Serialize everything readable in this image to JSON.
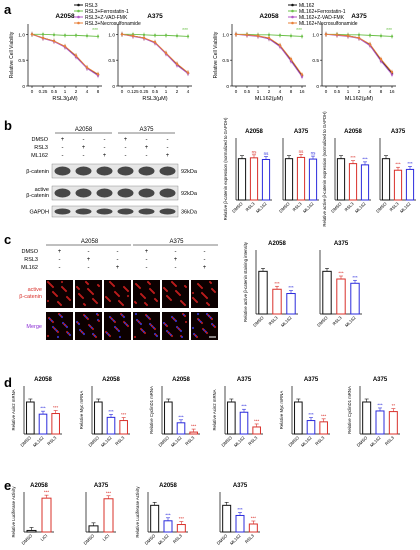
{
  "panels": {
    "a": "a",
    "b": "b",
    "c": "c",
    "d": "d",
    "e": "e"
  },
  "colors": {
    "black": "#111111",
    "red": "#d9302a",
    "blue": "#2b2bdc",
    "green": "#6cc04a",
    "purple": "#b056c6",
    "orange": "#e8803a",
    "lightgray": "#bdbdbd"
  },
  "chart_data": [
    {
      "type": "line",
      "panel": "a",
      "group": "RSL3",
      "title": "A2058",
      "ylabel": "Relative Cell Viability",
      "xlabel": "RSL3(μM)",
      "x_ticks": [
        "0",
        "0.25",
        "0.5",
        "1",
        "2",
        "4",
        "8"
      ],
      "x": [
        0,
        0.25,
        0.5,
        1,
        2,
        4,
        8
      ],
      "ylim": [
        0,
        1.2
      ],
      "y_ticks": [
        "0",
        "0.5",
        "1.0"
      ],
      "series": [
        {
          "name": "RSL3",
          "values": [
            1.0,
            0.93,
            0.87,
            0.76,
            0.58,
            0.35,
            0.22
          ]
        },
        {
          "name": "RSL3+Ferrostatin-1",
          "values": [
            1.0,
            1.0,
            0.99,
            0.98,
            0.98,
            0.97,
            0.96
          ]
        },
        {
          "name": "RSL3+Z-VAD-FMK",
          "values": [
            1.0,
            0.92,
            0.86,
            0.75,
            0.56,
            0.34,
            0.2
          ]
        },
        {
          "name": "RSL3+Necrosulfonamide",
          "values": [
            1.0,
            0.93,
            0.87,
            0.77,
            0.59,
            0.36,
            0.23
          ]
        }
      ],
      "significance": "***"
    },
    {
      "type": "line",
      "panel": "a",
      "group": "RSL3",
      "title": "A375",
      "ylabel": "",
      "xlabel": "RSL3(μM)",
      "x_ticks": [
        "0",
        "0.125",
        "0.25",
        "0.5",
        "1",
        "2",
        "4"
      ],
      "x": [
        0,
        0.125,
        0.25,
        0.5,
        1,
        2,
        4
      ],
      "ylim": [
        0,
        1.2
      ],
      "y_ticks": [
        "0",
        "0.5",
        "1.0"
      ],
      "series": [
        {
          "name": "RSL3",
          "values": [
            1.0,
            0.97,
            0.93,
            0.84,
            0.63,
            0.42,
            0.25
          ]
        },
        {
          "name": "RSL3+Ferrostatin-1",
          "values": [
            1.0,
            1.0,
            0.99,
            0.98,
            0.98,
            0.97,
            0.96
          ]
        },
        {
          "name": "RSL3+Z-VAD-FMK",
          "values": [
            1.0,
            0.96,
            0.92,
            0.83,
            0.62,
            0.4,
            0.24
          ]
        },
        {
          "name": "RSL3+Necrosulfonamide",
          "values": [
            1.0,
            0.97,
            0.93,
            0.85,
            0.64,
            0.43,
            0.26
          ]
        }
      ],
      "significance": "***"
    },
    {
      "type": "line",
      "panel": "a",
      "group": "ML162",
      "title": "A2058",
      "ylabel": "Relative Cell Viability",
      "xlabel": "ML162(μM)",
      "x_ticks": [
        "0",
        "0.5",
        "1",
        "2",
        "4",
        "8",
        "16"
      ],
      "x": [
        0,
        0.5,
        1,
        2,
        4,
        8,
        16
      ],
      "ylim": [
        0,
        1.2
      ],
      "y_ticks": [
        "0",
        "0.5",
        "1.0"
      ],
      "series": [
        {
          "name": "ML162",
          "values": [
            1.0,
            0.99,
            0.97,
            0.92,
            0.78,
            0.5,
            0.2
          ]
        },
        {
          "name": "ML162+Ferrostatin-1",
          "values": [
            1.0,
            1.0,
            0.99,
            0.99,
            0.98,
            0.97,
            0.96
          ]
        },
        {
          "name": "ML162+Z-VAD-FMK",
          "values": [
            1.0,
            0.98,
            0.96,
            0.91,
            0.76,
            0.48,
            0.18
          ]
        },
        {
          "name": "ML162+Necrosulfonamide",
          "values": [
            1.0,
            0.99,
            0.97,
            0.93,
            0.79,
            0.52,
            0.22
          ]
        }
      ],
      "significance": "***"
    },
    {
      "type": "line",
      "panel": "a",
      "group": "ML162",
      "title": "A375",
      "ylabel": "",
      "xlabel": "ML162(μM)",
      "x_ticks": [
        "0",
        "0.5",
        "1",
        "2",
        "4",
        "8",
        "16"
      ],
      "x": [
        0,
        0.5,
        1,
        2,
        4,
        8,
        16
      ],
      "ylim": [
        0,
        1.2
      ],
      "y_ticks": [
        "0",
        "0.5",
        "1.0"
      ],
      "series": [
        {
          "name": "ML162",
          "values": [
            1.0,
            0.99,
            0.97,
            0.93,
            0.8,
            0.5,
            0.25
          ]
        },
        {
          "name": "ML162+Ferrostatin-1",
          "values": [
            1.0,
            1.0,
            0.99,
            0.99,
            0.98,
            0.97,
            0.96
          ]
        },
        {
          "name": "ML162+Z-VAD-FMK",
          "values": [
            1.0,
            0.98,
            0.96,
            0.92,
            0.78,
            0.48,
            0.22
          ]
        },
        {
          "name": "ML162+Necrosulfonamide",
          "values": [
            1.0,
            0.99,
            0.97,
            0.93,
            0.81,
            0.52,
            0.27
          ]
        }
      ],
      "significance": "***"
    },
    {
      "type": "bar",
      "panel": "b",
      "title": "A2058",
      "ylabel": "Relative β-catenin expression (normalized to GAPDH)",
      "categories": [
        "DMSO",
        "RSL3",
        "ML162"
      ],
      "values": [
        1.0,
        1.02,
        0.98
      ],
      "colors": [
        "black",
        "red",
        "blue"
      ],
      "significance": [
        "",
        "ns",
        "ns"
      ],
      "ylim": [
        0,
        1.5
      ]
    },
    {
      "type": "bar",
      "panel": "b",
      "title": "A375",
      "ylabel": "",
      "categories": [
        "DMSO",
        "RSL3",
        "ML162"
      ],
      "values": [
        1.0,
        1.03,
        0.99
      ],
      "colors": [
        "black",
        "red",
        "blue"
      ],
      "significance": [
        "",
        "ns",
        "ns"
      ],
      "ylim": [
        0,
        1.5
      ]
    },
    {
      "type": "bar",
      "panel": "b",
      "title": "A2058",
      "ylabel": "Relative active β-catenin expression (normalized to GAPDH)",
      "categories": [
        "DMSO",
        "RSL3",
        "ML162"
      ],
      "values": [
        1.0,
        0.88,
        0.85
      ],
      "colors": [
        "black",
        "red",
        "blue"
      ],
      "significance": [
        "",
        "***",
        "***"
      ],
      "ylim": [
        0,
        1.5
      ]
    },
    {
      "type": "bar",
      "panel": "b",
      "title": "A375",
      "ylabel": "",
      "categories": [
        "DMSO",
        "RSL3",
        "ML162"
      ],
      "values": [
        1.0,
        0.72,
        0.74
      ],
      "colors": [
        "black",
        "red",
        "blue"
      ],
      "significance": [
        "",
        "***",
        "***"
      ],
      "ylim": [
        0,
        1.5
      ]
    },
    {
      "type": "bar",
      "panel": "c",
      "title": "A2058",
      "ylabel": "Relative active β-catenin staining intensity",
      "categories": [
        "DMSO",
        "RSL3",
        "ML162"
      ],
      "values": [
        1.0,
        0.58,
        0.48
      ],
      "colors": [
        "black",
        "red",
        "blue"
      ],
      "significance": [
        "",
        "***",
        "***"
      ],
      "ylim": [
        0,
        1.5
      ]
    },
    {
      "type": "bar",
      "panel": "c",
      "title": "A375",
      "ylabel": "",
      "categories": [
        "DMSO",
        "RSL3",
        "ML162"
      ],
      "values": [
        1.0,
        0.82,
        0.72
      ],
      "colors": [
        "black",
        "red",
        "blue"
      ],
      "significance": [
        "",
        "***",
        "***"
      ],
      "ylim": [
        0,
        1.5
      ]
    },
    {
      "type": "bar",
      "panel": "d",
      "title": "A2058",
      "ylabel": "Relative Axin2 mRNA",
      "categories": [
        "DMSO",
        "ML162",
        "RSL3"
      ],
      "values": [
        1.0,
        0.62,
        0.64
      ],
      "colors": [
        "black",
        "blue",
        "red"
      ],
      "significance": [
        "",
        "***",
        "***"
      ],
      "ylim": [
        0,
        1.5
      ]
    },
    {
      "type": "bar",
      "panel": "d",
      "title": "A2058",
      "ylabel": "Relative Myc mRNA",
      "categories": [
        "DMSO",
        "ML162",
        "RSL3"
      ],
      "values": [
        1.0,
        0.52,
        0.42
      ],
      "colors": [
        "black",
        "blue",
        "red"
      ],
      "significance": [
        "",
        "***",
        "***"
      ],
      "ylim": [
        0,
        1.5
      ]
    },
    {
      "type": "bar",
      "panel": "d",
      "title": "A2058",
      "ylabel": "Relative CyclinD1 mRNA",
      "categories": [
        "DMSO",
        "ML162",
        "RSL3"
      ],
      "values": [
        1.0,
        0.35,
        0.06
      ],
      "colors": [
        "black",
        "blue",
        "red"
      ],
      "significance": [
        "",
        "***",
        "***"
      ],
      "ylim": [
        0,
        1.5
      ]
    },
    {
      "type": "bar",
      "panel": "d",
      "title": "A375",
      "ylabel": "Relative Axin2 mRNA",
      "categories": [
        "DMSO",
        "ML162",
        "RSL3"
      ],
      "values": [
        1.0,
        0.68,
        0.22
      ],
      "colors": [
        "black",
        "blue",
        "red"
      ],
      "significance": [
        "",
        "***",
        "***"
      ],
      "ylim": [
        0,
        1.5
      ]
    },
    {
      "type": "bar",
      "panel": "d",
      "title": "A375",
      "ylabel": "Relative Myc mRNA",
      "categories": [
        "DMSO",
        "ML162",
        "RSL3"
      ],
      "values": [
        1.0,
        0.42,
        0.38
      ],
      "colors": [
        "black",
        "blue",
        "red"
      ],
      "significance": [
        "",
        "***",
        "***"
      ],
      "ylim": [
        0,
        1.5
      ]
    },
    {
      "type": "bar",
      "panel": "d",
      "title": "A375",
      "ylabel": "Relative CyclinD1 mRNA",
      "categories": [
        "DMSO",
        "ML162",
        "RSL3"
      ],
      "values": [
        1.0,
        0.72,
        0.7
      ],
      "colors": [
        "black",
        "blue",
        "red"
      ],
      "significance": [
        "",
        "***",
        "**"
      ],
      "ylim": [
        0,
        1.5
      ]
    },
    {
      "type": "bar",
      "panel": "e",
      "title": "A2058",
      "ylabel": "Relative Luciferase Activity",
      "categories": [
        "DMSO",
        "LiCl"
      ],
      "values": [
        1.0,
        22.0
      ],
      "colors": [
        "black",
        "red"
      ],
      "significance": [
        "",
        "***"
      ],
      "ylim": [
        0,
        26
      ]
    },
    {
      "type": "bar",
      "panel": "e",
      "title": "A375",
      "ylabel": "",
      "categories": [
        "DMSO",
        "LiCl"
      ],
      "values": [
        1.0,
        5.4
      ],
      "colors": [
        "black",
        "red"
      ],
      "significance": [
        "",
        "***"
      ],
      "ylim": [
        0,
        6.5
      ]
    },
    {
      "type": "bar",
      "panel": "e",
      "title": "A2058",
      "ylabel": "Relative Luciferase Activity",
      "categories": [
        "DMSO",
        "ML162",
        "RSL3"
      ],
      "values": [
        1.0,
        0.42,
        0.28
      ],
      "colors": [
        "black",
        "blue",
        "red"
      ],
      "significance": [
        "",
        "***",
        "***"
      ],
      "ylim": [
        0,
        1.5
      ]
    },
    {
      "type": "bar",
      "panel": "e",
      "title": "A375",
      "ylabel": "",
      "categories": [
        "DMSO",
        "ML162",
        "RSL3"
      ],
      "values": [
        1.0,
        0.62,
        0.3
      ],
      "colors": [
        "black",
        "blue",
        "red"
      ],
      "significance": [
        "",
        "***",
        "***"
      ],
      "ylim": [
        0,
        1.5
      ]
    }
  ],
  "western": {
    "lanes_group1": "A2058",
    "lanes_group2": "A375",
    "row_labels": [
      "DMSO",
      "RSL3",
      "ML162"
    ],
    "signs": [
      [
        "+",
        "-",
        "-",
        "+",
        "-",
        "-"
      ],
      [
        "-",
        "+",
        "-",
        "-",
        "+",
        "-"
      ],
      [
        "-",
        "-",
        "+",
        "-",
        "-",
        "+"
      ]
    ],
    "bands": [
      {
        "label": "β-catenin",
        "kda": "92kDa"
      },
      {
        "label": "active β-catenin",
        "kda": "92kDa"
      },
      {
        "label": "GAPDH",
        "kda": "36kDa"
      }
    ]
  },
  "imaging": {
    "group1": "A2058",
    "group2": "A375",
    "row_labels": [
      "DMSO",
      "RSL3",
      "ML162"
    ],
    "signs": [
      [
        "+",
        "-",
        "-",
        "+",
        "-",
        "-"
      ],
      [
        "-",
        "+",
        "-",
        "-",
        "+",
        "-"
      ],
      [
        "-",
        "-",
        "+",
        "-",
        "-",
        "+"
      ]
    ],
    "channels": [
      {
        "label": "active β-catenin",
        "color": "#d9302a"
      },
      {
        "label": "Merge",
        "color": "#8a2bd4"
      }
    ]
  }
}
